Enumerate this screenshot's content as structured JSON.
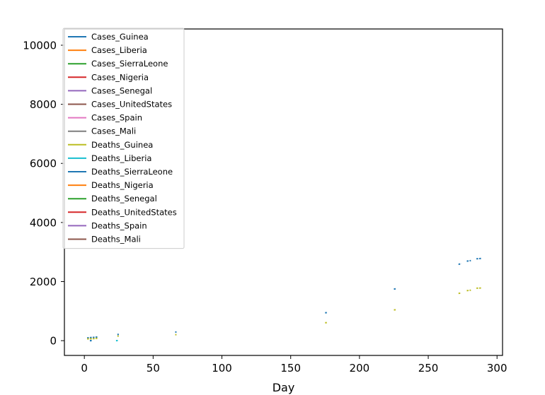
{
  "chart_data": {
    "type": "line",
    "title": "",
    "xlabel": "Day",
    "ylabel": "",
    "xlim": [
      -14.5,
      304
    ],
    "ylim": [
      -500,
      10550
    ],
    "xticks": [
      0,
      50,
      100,
      150,
      200,
      250,
      300
    ],
    "yticks": [
      0,
      2000,
      4000,
      6000,
      8000,
      10000
    ],
    "legend_position": "top-left",
    "grid": false,
    "series": [
      {
        "name": "Cases_Guinea",
        "color": "#1f77b4",
        "segments": [
          [
            [
              2,
              90
            ],
            [
              5,
              108
            ],
            [
              7,
              112
            ],
            [
              9,
              122
            ],
            [
              10,
              128
            ]
          ],
          [
            [
              24,
              205
            ],
            [
              25,
              218
            ]
          ],
          [
            [
              66,
              290
            ],
            [
              67,
              295
            ]
          ],
          [
            [
              175,
              945
            ],
            [
              177,
              950
            ]
          ],
          [
            [
              225,
              1745
            ],
            [
              227,
              1760
            ]
          ],
          [
            [
              272,
              2580
            ],
            [
              274,
              2610
            ]
          ],
          [
            [
              278,
              2690
            ],
            [
              281,
              2710
            ]
          ],
          [
            [
              285,
              2770
            ],
            [
              289,
              2785
            ]
          ]
        ]
      },
      {
        "name": "Cases_Liberia",
        "color": "#ff7f0e",
        "segments": []
      },
      {
        "name": "Cases_SierraLeone",
        "color": "#2ca02c",
        "segments": []
      },
      {
        "name": "Cases_Nigeria",
        "color": "#d62728",
        "segments": []
      },
      {
        "name": "Cases_Senegal",
        "color": "#9467bd",
        "segments": []
      },
      {
        "name": "Cases_UnitedStates",
        "color": "#8c564b",
        "segments": []
      },
      {
        "name": "Cases_Spain",
        "color": "#e377c2",
        "segments": []
      },
      {
        "name": "Cases_Mali",
        "color": "#7f7f7f",
        "segments": []
      },
      {
        "name": "Deaths_Guinea",
        "color": "#bcbd22",
        "segments": [
          [
            [
              2,
              60
            ],
            [
              5,
              65
            ],
            [
              7,
              70
            ],
            [
              9,
              80
            ],
            [
              10,
              85
            ]
          ],
          [
            [
              24,
              150
            ],
            [
              25,
              160
            ]
          ],
          [
            [
              66,
              200
            ],
            [
              67,
              205
            ]
          ],
          [
            [
              175,
              605
            ],
            [
              177,
              610
            ]
          ],
          [
            [
              225,
              1040
            ],
            [
              227,
              1050
            ]
          ],
          [
            [
              272,
              1600
            ],
            [
              274,
              1615
            ]
          ],
          [
            [
              278,
              1690
            ],
            [
              281,
              1710
            ]
          ],
          [
            [
              285,
              1775
            ],
            [
              289,
              1785
            ]
          ]
        ]
      },
      {
        "name": "Deaths_Liberia",
        "color": "#17becf",
        "segments": [
          [
            [
              4,
              0
            ],
            [
              6,
              4
            ]
          ],
          [
            [
              23,
              0
            ],
            [
              25,
              2
            ]
          ]
        ]
      },
      {
        "name": "Deaths_SierraLeone",
        "color": "#1f77b4",
        "segments": [
          [
            [
              4,
              0
            ],
            [
              6,
              0
            ]
          ]
        ]
      },
      {
        "name": "Deaths_Nigeria",
        "color": "#ff7f0e",
        "segments": []
      },
      {
        "name": "Deaths_Senegal",
        "color": "#2ca02c",
        "segments": []
      },
      {
        "name": "Deaths_UnitedStates",
        "color": "#d62728",
        "segments": []
      },
      {
        "name": "Deaths_Spain",
        "color": "#9467bd",
        "segments": []
      },
      {
        "name": "Deaths_Mali",
        "color": "#8c564b",
        "segments": []
      }
    ]
  }
}
